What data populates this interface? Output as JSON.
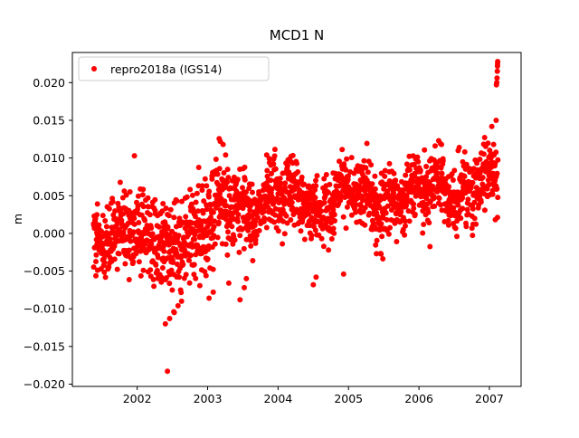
{
  "figure": {
    "background": "#ffffff"
  },
  "chart_data": {
    "type": "scatter",
    "title": "MCD1 N",
    "xlabel": "",
    "ylabel": "m",
    "xlim": [
      2001.08,
      2007.45
    ],
    "ylim": [
      -0.0203,
      0.024
    ],
    "xticks": [
      2002,
      2003,
      2004,
      2005,
      2006,
      2007
    ],
    "xtick_labels": [
      "2002",
      "2003",
      "2004",
      "2005",
      "2006",
      "2007"
    ],
    "yticks": [
      -0.02,
      -0.015,
      -0.01,
      -0.005,
      0.0,
      0.005,
      0.01,
      0.015,
      0.02
    ],
    "ytick_labels": [
      "−0.020",
      "−0.015",
      "−0.010",
      "−0.005",
      "0.000",
      "0.005",
      "0.010",
      "0.015",
      "0.020"
    ],
    "grid": false,
    "legend_position": "upper left",
    "series": [
      {
        "name": "repro2018a (IGS14)",
        "color": "#ff0000",
        "marker": "circle",
        "marker_radius": 3,
        "generator": {
          "seed": 42,
          "x_start": 2001.38,
          "x_end": 2007.12,
          "n_points": 1900,
          "x_jitter": 0.002,
          "trend": [
            [
              2001.38,
              -0.0003
            ],
            [
              2001.7,
              0.0
            ],
            [
              2002.0,
              -0.0005
            ],
            [
              2002.3,
              -0.0008
            ],
            [
              2002.6,
              -0.001
            ],
            [
              2002.9,
              -0.0008
            ],
            [
              2003.1,
              0.0015
            ],
            [
              2003.25,
              0.005
            ],
            [
              2003.5,
              0.0035
            ],
            [
              2003.7,
              0.003
            ],
            [
              2003.9,
              0.004
            ],
            [
              2004.1,
              0.005
            ],
            [
              2004.3,
              0.0055
            ],
            [
              2004.5,
              0.004
            ],
            [
              2004.7,
              0.0035
            ],
            [
              2004.9,
              0.0045
            ],
            [
              2005.1,
              0.0055
            ],
            [
              2005.3,
              0.005
            ],
            [
              2005.5,
              0.0045
            ],
            [
              2005.7,
              0.004
            ],
            [
              2005.9,
              0.0045
            ],
            [
              2006.1,
              0.0055
            ],
            [
              2006.25,
              0.0075
            ],
            [
              2006.4,
              0.006
            ],
            [
              2006.6,
              0.0055
            ],
            [
              2006.8,
              0.006
            ],
            [
              2007.0,
              0.007
            ],
            [
              2007.12,
              0.0075
            ]
          ],
          "sigma_points": [
            [
              2001.38,
              0.0022
            ],
            [
              2002.2,
              0.0028
            ],
            [
              2002.6,
              0.003
            ],
            [
              2003.0,
              0.0032
            ],
            [
              2003.6,
              0.0025
            ],
            [
              2004.5,
              0.0022
            ],
            [
              2007.12,
              0.0022
            ]
          ],
          "seasonal": [
            {
              "amplitude": 0.001,
              "period": 1.0,
              "phase": 0.3
            },
            {
              "amplitude": 0.0008,
              "period": 0.35,
              "phase": 0.0
            }
          ],
          "neg_tail": {
            "range": [
              2002.2,
              2003.7
            ],
            "prob": 0.03,
            "max_extra": 0.007
          },
          "outliers": [
            [
              2002.4,
              -0.012
            ],
            [
              2002.43,
              -0.0183
            ],
            [
              2002.46,
              -0.0113
            ],
            [
              2002.52,
              -0.0104
            ],
            [
              2002.58,
              -0.0096
            ],
            [
              2002.63,
              -0.009
            ],
            [
              2003.02,
              -0.0086
            ],
            [
              2003.08,
              -0.0078
            ],
            [
              2003.3,
              -0.0066
            ],
            [
              2003.46,
              -0.0088
            ],
            [
              2003.52,
              -0.0072
            ],
            [
              2003.55,
              -0.006
            ],
            [
              2004.5,
              -0.0068
            ],
            [
              2004.54,
              -0.0058
            ],
            [
              2004.93,
              -0.0054
            ],
            [
              2003.18,
              0.0122
            ],
            [
              2003.22,
              0.0118
            ],
            [
              2006.28,
              0.0123
            ],
            [
              2006.32,
              0.0118
            ],
            [
              2007.06,
              0.0118
            ],
            [
              2007.095,
              0.015
            ],
            [
              2007.1,
              0.0197
            ],
            [
              2007.105,
              0.02
            ],
            [
              2007.108,
              0.0206
            ],
            [
              2007.112,
              0.0215
            ],
            [
              2007.115,
              0.0222
            ],
            [
              2007.116,
              0.0225
            ],
            [
              2007.118,
              0.0228
            ]
          ]
        }
      }
    ]
  }
}
